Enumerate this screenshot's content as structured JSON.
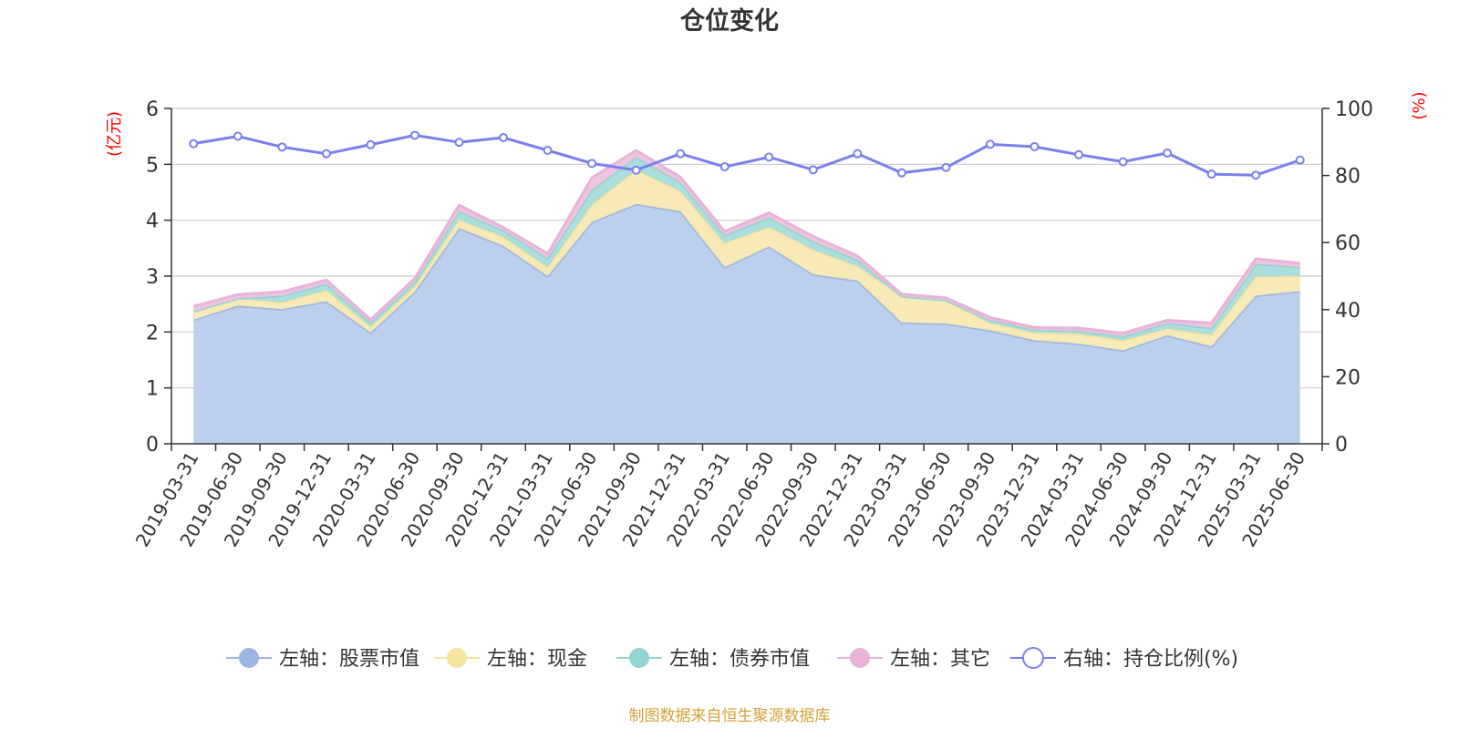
{
  "chart_data": {
    "type": "area",
    "title": "仓位变化",
    "left_axis": {
      "unit_label": "(亿元)",
      "ylim": [
        0,
        6
      ],
      "ticks": [
        "0",
        "1",
        "2",
        "3",
        "4",
        "5",
        "6"
      ]
    },
    "right_axis": {
      "unit_label": "(%)",
      "ylim": [
        0,
        100
      ],
      "ticks": [
        "0",
        "20",
        "40",
        "60",
        "80",
        "100"
      ]
    },
    "grid": true,
    "legend_position": "bottom",
    "categories": [
      "2019-03-31",
      "2019-06-30",
      "2019-09-30",
      "2019-12-31",
      "2020-03-31",
      "2020-06-30",
      "2020-09-30",
      "2020-12-31",
      "2021-03-31",
      "2021-06-30",
      "2021-09-30",
      "2021-12-31",
      "2022-03-31",
      "2022-06-30",
      "2022-09-30",
      "2022-12-31",
      "2023-03-31",
      "2023-06-30",
      "2023-09-30",
      "2023-12-31",
      "2024-03-31",
      "2024-06-30",
      "2024-09-30",
      "2024-12-31",
      "2025-03-31",
      "2025-06-30"
    ],
    "series": [
      {
        "name": "左轴：股票市值",
        "axis": "left",
        "kind": "stacked-area",
        "color": "#9bb6e0",
        "fill": "#b8cceb",
        "values": [
          2.22,
          2.47,
          2.41,
          2.55,
          1.99,
          2.72,
          3.86,
          3.54,
          3.0,
          3.97,
          4.29,
          4.16,
          3.16,
          3.53,
          3.03,
          2.92,
          2.17,
          2.15,
          2.03,
          1.85,
          1.79,
          1.67,
          1.94,
          1.74,
          2.65,
          2.73
        ]
      },
      {
        "name": "左轴：现金",
        "axis": "left",
        "kind": "stacked-area",
        "color": "#f5e3a0",
        "fill": "#f8e9b2",
        "values": [
          0.15,
          0.13,
          0.12,
          0.2,
          0.1,
          0.1,
          0.15,
          0.16,
          0.16,
          0.31,
          0.61,
          0.36,
          0.43,
          0.35,
          0.44,
          0.26,
          0.47,
          0.42,
          0.13,
          0.14,
          0.18,
          0.18,
          0.12,
          0.21,
          0.34,
          0.27
        ]
      },
      {
        "name": "左轴：债券市值",
        "axis": "left",
        "kind": "stacked-area",
        "color": "#93d4d2",
        "fill": "#a7dcda",
        "values": [
          0.0,
          0.0,
          0.12,
          0.11,
          0.08,
          0.08,
          0.15,
          0.12,
          0.16,
          0.26,
          0.23,
          0.16,
          0.14,
          0.17,
          0.15,
          0.11,
          0.0,
          0.0,
          0.05,
          0.05,
          0.05,
          0.07,
          0.1,
          0.12,
          0.23,
          0.16
        ]
      },
      {
        "name": "左轴：其它",
        "axis": "left",
        "kind": "stacked-area",
        "color": "#e8b3d8",
        "fill": "#eec2e0",
        "values": [
          0.09,
          0.07,
          0.07,
          0.07,
          0.05,
          0.06,
          0.11,
          0.05,
          0.08,
          0.22,
          0.12,
          0.09,
          0.07,
          0.08,
          0.09,
          0.07,
          0.04,
          0.04,
          0.05,
          0.04,
          0.05,
          0.06,
          0.05,
          0.09,
          0.09,
          0.07
        ]
      },
      {
        "name": "右轴：持仓比例(%)",
        "axis": "right",
        "kind": "line",
        "color": "#7b7fee",
        "values": [
          89.5,
          91.7,
          88.5,
          86.5,
          89.2,
          92.0,
          89.9,
          91.3,
          87.5,
          83.6,
          81.6,
          86.5,
          82.6,
          85.5,
          81.7,
          86.5,
          80.8,
          82.4,
          89.3,
          88.6,
          86.2,
          84.1,
          86.7,
          80.4,
          80.1,
          84.6
        ]
      }
    ]
  },
  "source_note": "制图数据来自恒生聚源数据库",
  "colors": {
    "left_unit": "#ff0000",
    "right_unit": "#ff0000",
    "source": "#d4a23a",
    "axis": "#333333",
    "grid": "#cccccc"
  }
}
